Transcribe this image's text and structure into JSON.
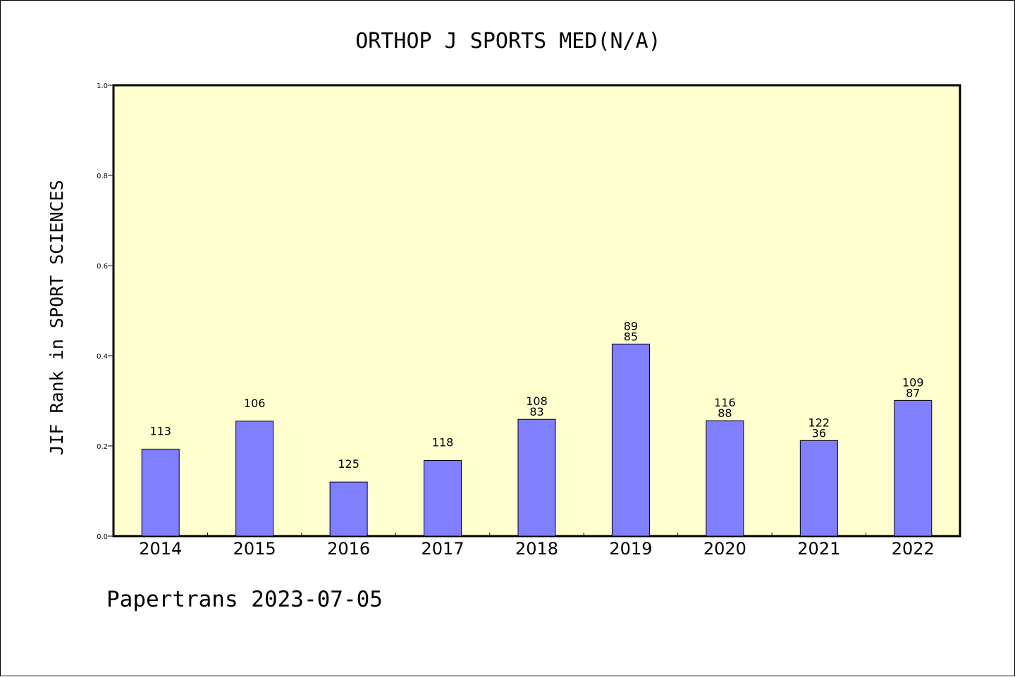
{
  "chart_data": {
    "type": "bar",
    "title": "ORTHOP J SPORTS MED(N/A)",
    "ylabel": "JIF Rank in SPORT SCIENCES",
    "xlabel": "",
    "ylim": [
      0,
      1.0
    ],
    "yticks": [
      "0.0",
      "0.2",
      "0.4",
      "0.6",
      "0.8",
      "1.0"
    ],
    "categories": [
      "2014",
      "2015",
      "2016",
      "2017",
      "2018",
      "2019",
      "2020",
      "2021",
      "2022"
    ],
    "values": [
      0.193,
      0.255,
      0.12,
      0.168,
      0.259,
      0.426,
      0.256,
      0.212,
      0.301
    ],
    "labels": [
      [
        "113"
      ],
      [
        "106"
      ],
      [
        "125"
      ],
      [
        "118"
      ],
      [
        "108",
        "83"
      ],
      [
        "89",
        "85"
      ],
      [
        "116",
        "88"
      ],
      [
        "122",
        "36"
      ],
      [
        "109",
        "87"
      ]
    ],
    "colors": {
      "plot_background": "#ffffd0",
      "bar_fill": "#8080ff",
      "bar_stroke": "#000000"
    }
  },
  "footer": {
    "text": "Papertrans 2023-07-05"
  }
}
